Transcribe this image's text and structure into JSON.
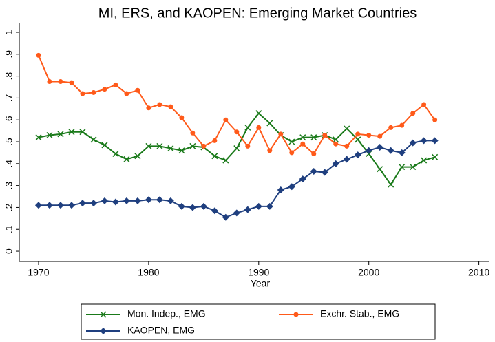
{
  "chart_data": {
    "type": "line",
    "title": "MI, ERS, and KAOPEN: Emerging Market Countries",
    "x_label": "Year",
    "x": [
      1970,
      1971,
      1972,
      1973,
      1974,
      1975,
      1976,
      1977,
      1978,
      1979,
      1980,
      1981,
      1982,
      1983,
      1984,
      1985,
      1986,
      1987,
      1988,
      1989,
      1990,
      1991,
      1992,
      1993,
      1994,
      1995,
      1996,
      1997,
      1998,
      1999,
      2000,
      2001,
      2002,
      2003,
      2004,
      2005,
      2006
    ],
    "series": [
      {
        "name": "Mon. Indep., EMG",
        "color": "#1a7a1a",
        "marker": "x",
        "values": [
          0.52,
          0.53,
          0.535,
          0.545,
          0.545,
          0.51,
          0.485,
          0.445,
          0.42,
          0.435,
          0.48,
          0.48,
          0.47,
          0.46,
          0.48,
          0.475,
          0.435,
          0.415,
          0.47,
          0.565,
          0.63,
          0.585,
          0.53,
          0.5,
          0.52,
          0.52,
          0.53,
          0.51,
          0.56,
          0.51,
          0.445,
          0.375,
          0.305,
          0.385,
          0.385,
          0.415,
          0.43
        ]
      },
      {
        "name": "Exchr. Stab., EMG",
        "color": "#ff5a1a",
        "marker": "circle",
        "values": [
          0.895,
          0.775,
          0.775,
          0.77,
          0.72,
          0.725,
          0.74,
          0.76,
          0.72,
          0.735,
          0.655,
          0.67,
          0.66,
          0.61,
          0.54,
          0.48,
          0.505,
          0.6,
          0.545,
          0.48,
          0.565,
          0.46,
          0.535,
          0.45,
          0.49,
          0.445,
          0.53,
          0.49,
          0.48,
          0.535,
          0.53,
          0.525,
          0.565,
          0.575,
          0.63,
          0.67,
          0.6
        ]
      },
      {
        "name": "KAOPEN, EMG",
        "color": "#1f3f7f",
        "marker": "diamond",
        "values": [
          0.21,
          0.21,
          0.21,
          0.21,
          0.22,
          0.22,
          0.23,
          0.225,
          0.23,
          0.23,
          0.235,
          0.235,
          0.23,
          0.205,
          0.2,
          0.205,
          0.185,
          0.155,
          0.175,
          0.19,
          0.205,
          0.205,
          0.28,
          0.295,
          0.33,
          0.365,
          0.36,
          0.4,
          0.42,
          0.44,
          0.46,
          0.475,
          0.46,
          0.45,
          0.495,
          0.505,
          0.505
        ]
      }
    ],
    "xlim": [
      1968.25,
      2010.9
    ],
    "xticks": [
      1970,
      1980,
      1990,
      2000,
      2010
    ],
    "ylim": [
      -0.047,
      1.044
    ],
    "yticks": [
      0,
      {
        "value": 0.1,
        "label": ".1"
      },
      {
        "value": 0.2,
        "label": ".2"
      },
      {
        "value": 0.3,
        "label": ".3"
      },
      {
        "value": 0.4,
        "label": ".4"
      },
      {
        "value": 0.5,
        "label": ".5"
      },
      {
        "value": 0.6,
        "label": ".6"
      },
      {
        "value": 0.7,
        "label": ".7"
      },
      {
        "value": 0.8,
        "label": ".8"
      },
      {
        "value": 0.9,
        "label": ".9"
      },
      1
    ],
    "legend": "bottom"
  }
}
